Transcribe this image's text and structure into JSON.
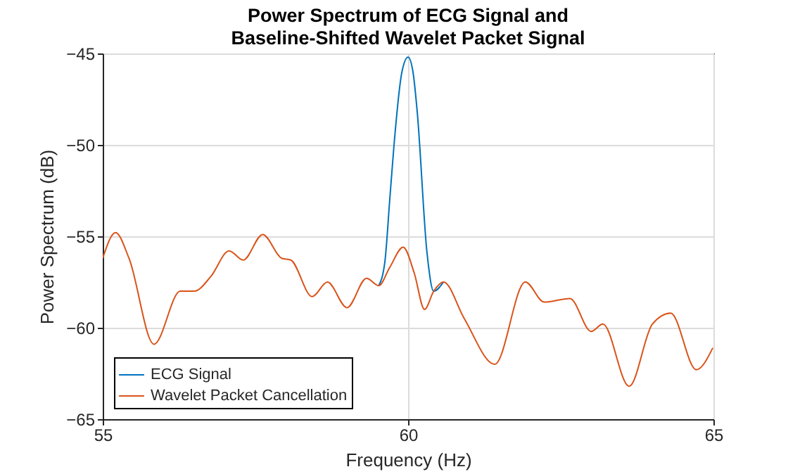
{
  "chart_data": {
    "type": "line",
    "title": "Power Spectrum of ECG Signal and\nBaseline-Shifted Wavelet Packet Signal",
    "xlabel": "Frequency (Hz)",
    "ylabel": "Power Spectrum (dB)",
    "xlim": [
      55,
      65
    ],
    "xticks": [
      55,
      60,
      65
    ],
    "ylim": [
      -65,
      -45
    ],
    "yticks": [
      -65,
      -60,
      -55,
      -50,
      -45
    ],
    "grid": true,
    "legend": "bottom left",
    "series": [
      {
        "name": "ECG Signal",
        "color": "#0072bd",
        "x": [
          59.52,
          59.62,
          59.7,
          59.77,
          59.9,
          60.0,
          60.08,
          60.15,
          60.31,
          60.42,
          60.58
        ],
        "values": [
          -57.7,
          -56.4,
          -53.0,
          -50.0,
          -46.0,
          -45.2,
          -46.0,
          -48.2,
          -55.9,
          -58.0,
          -57.5
        ]
      },
      {
        "name": "Wavelet Packet Cancellation",
        "color": "#d95319",
        "x": [
          55.0,
          55.21,
          55.43,
          55.84,
          56.27,
          56.5,
          56.77,
          57.07,
          57.3,
          57.62,
          57.93,
          58.08,
          58.43,
          58.68,
          59.0,
          59.32,
          59.52,
          59.7,
          59.92,
          60.1,
          60.27,
          60.42,
          60.58,
          60.92,
          61.42,
          61.92,
          62.23,
          62.65,
          63.0,
          63.19,
          63.62,
          64.0,
          64.3,
          64.72,
          64.99
        ],
        "values": [
          -56.2,
          -54.8,
          -56.2,
          -60.9,
          -58.0,
          -58.0,
          -57.2,
          -55.8,
          -56.3,
          -54.9,
          -56.2,
          -56.3,
          -58.3,
          -57.5,
          -58.9,
          -57.3,
          -57.7,
          -56.7,
          -55.6,
          -57.0,
          -59.0,
          -58.0,
          -57.5,
          -59.5,
          -62.0,
          -57.5,
          -58.6,
          -58.4,
          -60.2,
          -59.8,
          -63.2,
          -59.8,
          -59.2,
          -62.3,
          -61.1
        ]
      }
    ]
  }
}
